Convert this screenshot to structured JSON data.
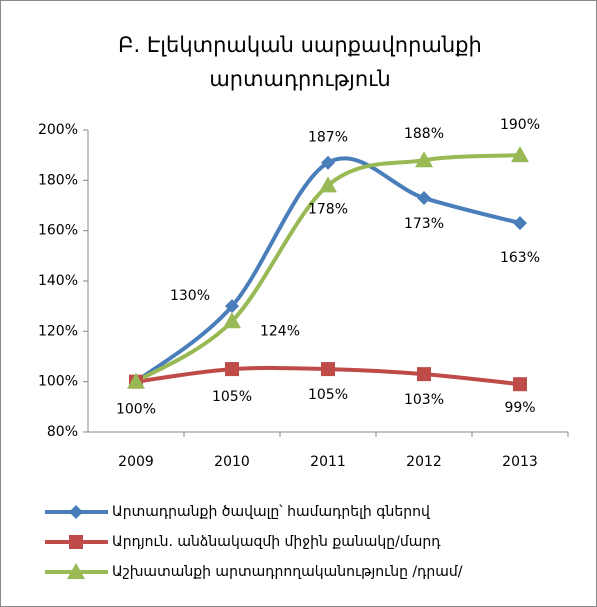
{
  "chart_data": {
    "type": "line",
    "title": [
      "Բ. Էլեկտրական սարքավորանքի",
      "արտադրություն"
    ],
    "categories": [
      "2009",
      "2010",
      "2011",
      "2012",
      "2013"
    ],
    "series": [
      {
        "name": "Արտադրանքի ծավալը՝ համադրելի գներով",
        "color": "#4a7ebb",
        "marker": "diamond",
        "values": [
          100,
          130,
          187,
          173,
          163
        ],
        "value_labels": [
          null,
          "130%",
          "187%",
          "173%",
          "163%"
        ]
      },
      {
        "name": "Արդյուն. անձնակազմի միջին քանակը/մարդ",
        "color": "#be4b48",
        "marker": "square",
        "values": [
          100,
          105,
          105,
          103,
          99
        ],
        "value_labels": [
          "100%",
          "105%",
          "105%",
          "103%",
          "99%"
        ]
      },
      {
        "name": "Աշխատանքի արտադրողականությունը /դրամ/",
        "color": "#98b954",
        "marker": "triangle",
        "values": [
          100,
          124,
          178,
          188,
          190
        ],
        "value_labels": [
          null,
          "124%",
          "178%",
          "188%",
          "190%"
        ]
      }
    ],
    "ylim": [
      80,
      200
    ],
    "yticks": [
      {
        "value": 80,
        "label": "80%"
      },
      {
        "value": 100,
        "label": "100%"
      },
      {
        "value": 120,
        "label": "120%"
      },
      {
        "value": 140,
        "label": "140%"
      },
      {
        "value": 160,
        "label": "160%"
      },
      {
        "value": 180,
        "label": "180%"
      },
      {
        "value": 200,
        "label": "200%"
      }
    ],
    "grid": false,
    "legend": "bottom"
  }
}
